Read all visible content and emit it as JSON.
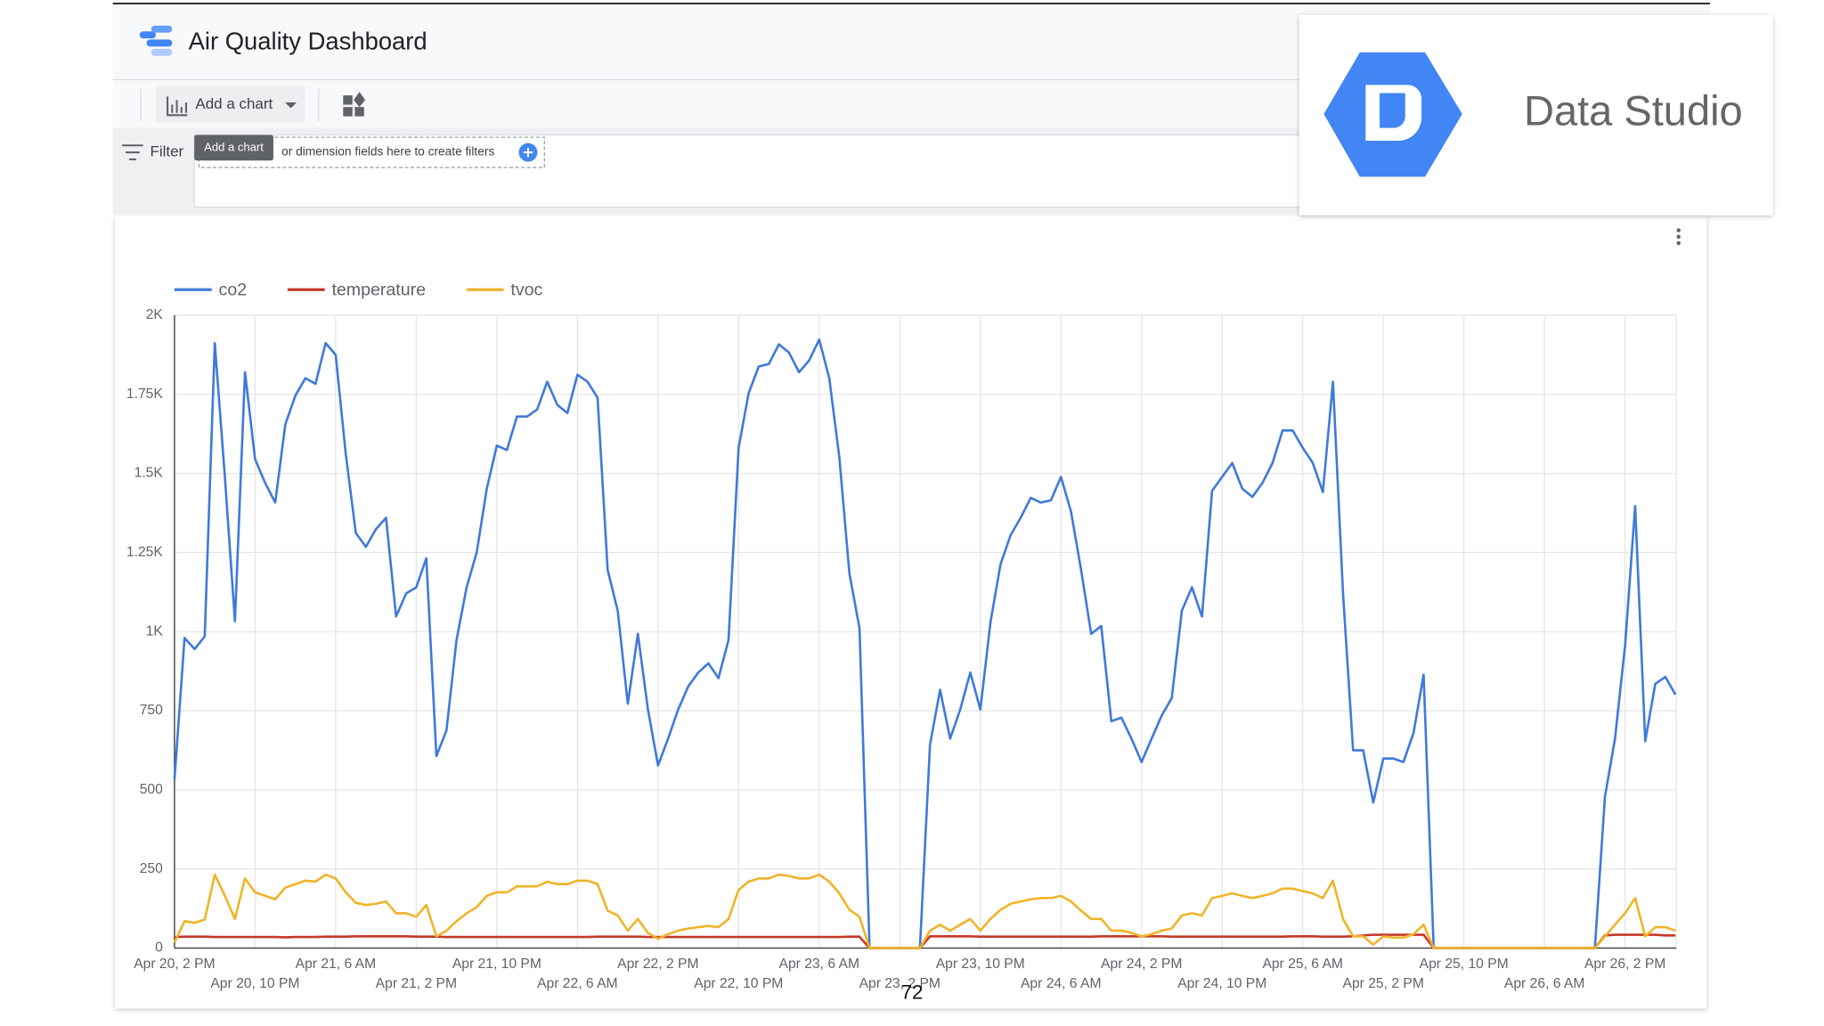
{
  "header": {
    "title": "Air Quality Dashboard"
  },
  "toolbar": {
    "add_chart": "Add a chart"
  },
  "filter": {
    "label": "Filter",
    "tooltip": "Add a chart",
    "placeholder": "or dimension fields here to create filters"
  },
  "logo": {
    "text": "Data Studio"
  },
  "page_number": "72",
  "chart_data": {
    "type": "line",
    "categories": [
      "Apr 20, 2 PM",
      null,
      null,
      null,
      null,
      null,
      null,
      null,
      "Apr 20, 10 PM",
      null,
      null,
      null,
      null,
      null,
      null,
      null,
      "Apr 21, 6 AM",
      null,
      null,
      null,
      null,
      null,
      null,
      null,
      "Apr 21, 2 PM",
      null,
      null,
      null,
      null,
      null,
      null,
      null,
      "Apr 21, 10 PM",
      null,
      null,
      null,
      null,
      null,
      null,
      null,
      "Apr 22, 6 AM",
      null,
      null,
      null,
      null,
      null,
      null,
      null,
      "Apr 22, 2 PM",
      null,
      null,
      null,
      null,
      null,
      null,
      null,
      "Apr 22, 10 PM",
      null,
      null,
      null,
      null,
      null,
      null,
      null,
      "Apr 23, 6 AM",
      null,
      null,
      null,
      null,
      null,
      null,
      null,
      "Apr 23, 2 PM",
      null,
      null,
      null,
      null,
      null,
      null,
      null,
      "Apr 23, 10 PM",
      null,
      null,
      null,
      null,
      null,
      null,
      null,
      "Apr 24, 6 AM",
      null,
      null,
      null,
      null,
      null,
      null,
      null,
      "Apr 24, 2 PM",
      null,
      null,
      null,
      null,
      null,
      null,
      null,
      "Apr 24, 10 PM",
      null,
      null,
      null,
      null,
      null,
      null,
      null,
      "Apr 25, 6 AM",
      null,
      null,
      null,
      null,
      null,
      null,
      null,
      "Apr 25, 2 PM",
      null,
      null,
      null,
      null,
      null,
      null,
      null,
      "Apr 25, 10 PM",
      null,
      null,
      null,
      null,
      null,
      null,
      null,
      "Apr 26, 6 AM",
      null,
      null,
      null,
      null,
      null,
      null,
      null,
      "Apr 26, 2 PM",
      null,
      null,
      null,
      null,
      null
    ],
    "series": [
      {
        "name": "co2",
        "color": "#3f7ad9",
        "values": [
          533,
          980,
          945,
          985,
          1912,
          1490,
          1033,
          1820,
          1545,
          1470,
          1408,
          1655,
          1746,
          1801,
          1783,
          1912,
          1875,
          1562,
          1312,
          1268,
          1324,
          1360,
          1048,
          1121,
          1140,
          1232,
          607,
          688,
          974,
          1140,
          1250,
          1452,
          1588,
          1574,
          1680,
          1680,
          1702,
          1790,
          1717,
          1691,
          1812,
          1790,
          1739,
          1195,
          1066,
          772,
          993,
          754,
          577,
          662,
          754,
          827,
          871,
          900,
          853,
          974,
          1581,
          1754,
          1838,
          1846,
          1908,
          1882,
          1820,
          1857,
          1923,
          1801,
          1551,
          1184,
          1011,
          0,
          0,
          0,
          0,
          0,
          0,
          643,
          816,
          662,
          754,
          871,
          754,
          1029,
          1213,
          1305,
          1360,
          1423,
          1408,
          1415,
          1489,
          1379,
          1195,
          993,
          1018,
          717,
          728,
          662,
          588,
          662,
          735,
          790,
          1066,
          1140,
          1048,
          1445,
          1489,
          1533,
          1452,
          1426,
          1470,
          1533,
          1636,
          1636,
          1581,
          1533,
          1441,
          1790,
          1121,
          625,
          625,
          460,
          599,
          599,
          588,
          680,
          864,
          0,
          0,
          0,
          0,
          0,
          0,
          0,
          0,
          0,
          0,
          0,
          0,
          0,
          0,
          0,
          0,
          0,
          478,
          662,
          956,
          1397,
          654,
          835,
          857,
          801
        ]
      },
      {
        "name": "temperature",
        "color": "#c5392a",
        "values": [
          35,
          36,
          36,
          36,
          35,
          35,
          35,
          35,
          35,
          35,
          35,
          34,
          35,
          35,
          35,
          36,
          36,
          36,
          37,
          37,
          37,
          37,
          37,
          37,
          36,
          36,
          36,
          35,
          35,
          35,
          35,
          35,
          35,
          35,
          35,
          35,
          35,
          35,
          35,
          35,
          35,
          35,
          36,
          36,
          36,
          36,
          36,
          35,
          35,
          35,
          35,
          35,
          35,
          35,
          35,
          35,
          35,
          35,
          35,
          35,
          35,
          35,
          35,
          35,
          35,
          35,
          35,
          36,
          36,
          0,
          0,
          0,
          0,
          0,
          0,
          37,
          37,
          37,
          37,
          37,
          36,
          36,
          36,
          36,
          36,
          36,
          36,
          36,
          36,
          36,
          36,
          36,
          37,
          37,
          37,
          37,
          37,
          37,
          37,
          36,
          36,
          36,
          36,
          36,
          36,
          36,
          36,
          36,
          36,
          36,
          36,
          37,
          37,
          37,
          36,
          36,
          36,
          37,
          40,
          42,
          42,
          42,
          42,
          42,
          42,
          0,
          0,
          0,
          0,
          0,
          0,
          0,
          0,
          0,
          0,
          0,
          0,
          0,
          0,
          0,
          0,
          0,
          40,
          42,
          42,
          42,
          42,
          42,
          40,
          40
        ]
      },
      {
        "name": "tvoc",
        "color": "#f0b429",
        "values": [
          18,
          85,
          80,
          90,
          232,
          165,
          92,
          220,
          176,
          165,
          154,
          191,
          202,
          213,
          210,
          232,
          220,
          176,
          143,
          136,
          140,
          147,
          110,
          110,
          99,
          136,
          37,
          55,
          85,
          110,
          129,
          165,
          176,
          176,
          195,
          195,
          195,
          210,
          202,
          202,
          213,
          213,
          202,
          118,
          103,
          55,
          92,
          48,
          29,
          44,
          55,
          62,
          66,
          70,
          66,
          92,
          184,
          210,
          220,
          220,
          232,
          228,
          220,
          220,
          232,
          210,
          173,
          121,
          99,
          0,
          0,
          0,
          0,
          0,
          0,
          55,
          74,
          55,
          74,
          92,
          55,
          92,
          121,
          140,
          147,
          154,
          158,
          158,
          165,
          147,
          118,
          92,
          92,
          55,
          55,
          48,
          37,
          44,
          55,
          62,
          103,
          110,
          103,
          158,
          165,
          173,
          165,
          158,
          165,
          173,
          188,
          188,
          180,
          173,
          158,
          213,
          92,
          37,
          37,
          11,
          37,
          33,
          33,
          44,
          74,
          0,
          0,
          0,
          0,
          0,
          0,
          0,
          0,
          0,
          0,
          0,
          0,
          0,
          0,
          0,
          0,
          0,
          37,
          74,
          110,
          158,
          37,
          66,
          66,
          55
        ]
      }
    ],
    "ylim": [
      0,
      2000
    ],
    "yticks": [
      0,
      250,
      500,
      750,
      {
        "value": 1000,
        "label": "1K"
      },
      {
        "value": 1250,
        "label": "1.25K"
      },
      {
        "value": 1500,
        "label": "1.5K"
      },
      {
        "value": 1750,
        "label": "1.75K"
      },
      {
        "value": 2000,
        "label": "2K"
      }
    ],
    "grid": true,
    "legend": "top"
  }
}
